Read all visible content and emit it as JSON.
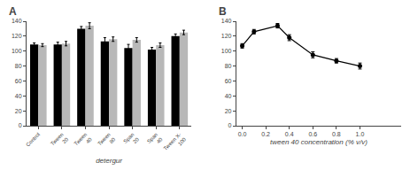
{
  "chart_data": [
    {
      "type": "bar",
      "title": "A",
      "xlabel": "detergur",
      "categories": [
        "Control",
        "Tween\n20",
        "Tween\n40",
        "Tween\n80",
        "Span\n20",
        "Span\n40",
        "Tween X-\n100"
      ],
      "series": [
        {
          "color": "black",
          "values": [
            109,
            109,
            130,
            113,
            104,
            102,
            120
          ],
          "errors": [
            2,
            3,
            3,
            5,
            5,
            3,
            3
          ]
        },
        {
          "color": "#b8b8b8",
          "values": [
            108,
            110,
            134,
            116,
            115,
            108,
            125
          ],
          "errors": [
            2,
            3,
            4,
            3,
            3,
            3,
            3
          ]
        }
      ],
      "ylim": [
        0,
        140
      ],
      "yticks": [
        0,
        20,
        40,
        60,
        80,
        100,
        120,
        140
      ],
      "grid": false
    },
    {
      "type": "line",
      "title": "B",
      "xlabel": "tween 40 concentration (% v/v)",
      "x": [
        0.0,
        0.1,
        0.3,
        0.4,
        0.6,
        0.8,
        1.0
      ],
      "series": [
        {
          "color": "black",
          "marker": "circle",
          "line_style": "solid",
          "values": [
            107,
            126,
            134,
            118,
            95,
            87,
            80
          ],
          "errors": [
            3,
            3,
            3,
            4,
            4,
            3,
            4
          ]
        }
      ],
      "xlim": [
        -0.05,
        1.35
      ],
      "xticks": [
        {
          "value": 0.0,
          "label": "0.0"
        },
        0.2,
        0.4,
        0.6,
        0.8,
        {
          "value": 1.0,
          "label": "1.0"
        }
      ],
      "ylim": [
        0,
        140
      ],
      "yticks": [
        0,
        20,
        40,
        60,
        80,
        100,
        120,
        140
      ],
      "grid": false
    }
  ]
}
